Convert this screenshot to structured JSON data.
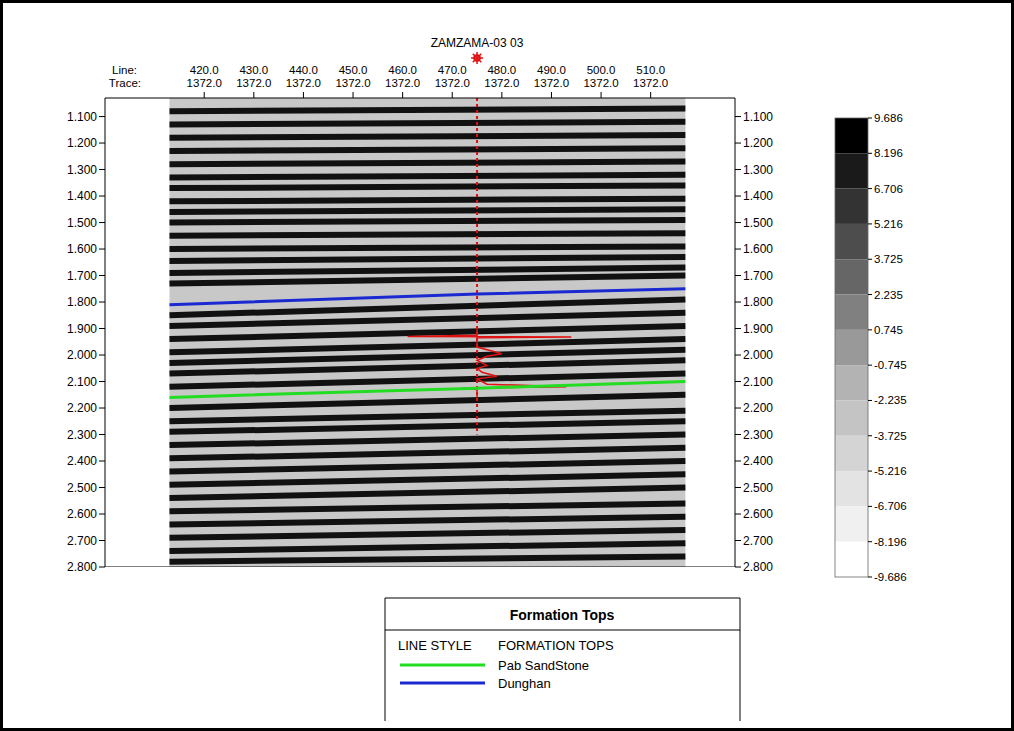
{
  "chart_data": {
    "type": "seismic_section",
    "title": "ZAMZAMA-03 03",
    "x_row_labels": [
      "Line:",
      "Trace:"
    ],
    "xlim": [
      400,
      527
    ],
    "xticks": [
      {
        "value": 420,
        "label": "420.0"
      },
      {
        "value": 430,
        "label": "430.0"
      },
      {
        "value": 440,
        "label": "440.0"
      },
      {
        "value": 450,
        "label": "450.0"
      },
      {
        "value": 460,
        "label": "460.0"
      },
      {
        "value": 470,
        "label": "470.0"
      },
      {
        "value": 480,
        "label": "480.0"
      },
      {
        "value": 490,
        "label": "490.0"
      },
      {
        "value": 500,
        "label": "500.0"
      },
      {
        "value": 510,
        "label": "510.0"
      }
    ],
    "trace_labels": [
      "1372.0",
      "1372.0",
      "1372.0",
      "1372.0",
      "1372.0",
      "1372.0",
      "1372.0",
      "1372.0",
      "1372.0",
      "1372.0"
    ],
    "ylim": [
      1.03,
      2.8
    ],
    "yticks": [
      {
        "value": 1.1,
        "label": "1.100"
      },
      {
        "value": 1.2,
        "label": "1.200"
      },
      {
        "value": 1.3,
        "label": "1.300"
      },
      {
        "value": 1.4,
        "label": "1.400"
      },
      {
        "value": 1.5,
        "label": "1.500"
      },
      {
        "value": 1.6,
        "label": "1.600"
      },
      {
        "value": 1.7,
        "label": "1.700"
      },
      {
        "value": 1.8,
        "label": "1.800"
      },
      {
        "value": 1.9,
        "label": "1.900"
      },
      {
        "value": 2.0,
        "label": "2.000"
      },
      {
        "value": 2.1,
        "label": "2.100"
      },
      {
        "value": 2.2,
        "label": "2.200"
      },
      {
        "value": 2.3,
        "label": "2.300"
      },
      {
        "value": 2.4,
        "label": "2.400"
      },
      {
        "value": 2.5,
        "label": "2.500"
      },
      {
        "value": 2.6,
        "label": "2.600"
      },
      {
        "value": 2.7,
        "label": "2.700"
      },
      {
        "value": 2.8,
        "label": "2.800"
      }
    ],
    "section": {
      "x": [
        413,
        517
      ],
      "reflectors": [
        [
          1.08,
          1.07
        ],
        [
          1.13,
          1.12
        ],
        [
          1.18,
          1.17
        ],
        [
          1.23,
          1.22
        ],
        [
          1.28,
          1.27
        ],
        [
          1.33,
          1.32
        ],
        [
          1.37,
          1.36
        ],
        [
          1.42,
          1.41
        ],
        [
          1.46,
          1.45
        ],
        [
          1.5,
          1.49
        ],
        [
          1.55,
          1.54
        ],
        [
          1.6,
          1.59
        ],
        [
          1.645,
          1.63
        ],
        [
          1.69,
          1.67
        ],
        [
          1.73,
          1.7
        ],
        [
          1.85,
          1.79
        ],
        [
          1.89,
          1.84
        ],
        [
          1.94,
          1.89
        ],
        [
          1.99,
          1.94
        ],
        [
          2.03,
          1.98
        ],
        [
          2.07,
          2.02
        ],
        [
          2.12,
          2.07
        ],
        [
          2.2,
          2.15
        ],
        [
          2.25,
          2.21
        ],
        [
          2.29,
          2.25
        ],
        [
          2.34,
          2.3
        ],
        [
          2.39,
          2.35
        ],
        [
          2.44,
          2.4
        ],
        [
          2.49,
          2.45
        ],
        [
          2.54,
          2.5
        ],
        [
          2.59,
          2.56
        ],
        [
          2.64,
          2.61
        ],
        [
          2.69,
          2.66
        ],
        [
          2.74,
          2.71
        ],
        [
          2.78,
          2.76
        ]
      ]
    },
    "well": {
      "line": 475,
      "t": [
        1.03,
        2.3
      ],
      "color": "#e01010"
    },
    "synthetic": {
      "t": [
        1.9,
        1.925,
        1.93,
        1.932,
        1.935,
        1.97,
        1.985,
        1.995,
        2.005,
        2.02,
        2.04,
        2.05,
        2.065,
        2.08,
        2.09,
        2.11,
        2.12,
        2.125,
        2.13,
        2.16
      ],
      "amplitude": [
        0,
        0,
        -14,
        19,
        0,
        0,
        3,
        5,
        2,
        0,
        2,
        0,
        1,
        4,
        0,
        2,
        18,
        -3,
        0,
        0
      ],
      "color": "#e01010"
    },
    "series": [
      {
        "name": "Pab SandStone",
        "color": "#22dd22",
        "x": [
          413,
          475,
          517
        ],
        "values": [
          2.16,
          2.125,
          2.1
        ]
      },
      {
        "name": "Dunghan",
        "color": "#1a2ad0",
        "x": [
          413,
          475,
          517
        ],
        "values": [
          1.81,
          1.77,
          1.75
        ]
      }
    ],
    "legend": "bottom",
    "legend_title": "Formation Tops",
    "legend_headers": [
      "LINE STYLE",
      "FORMATION TOPS"
    ],
    "colorbar": {
      "range": [
        -9.686,
        9.686
      ],
      "ticks": [
        9.686,
        8.196,
        6.706,
        5.216,
        3.725,
        2.235,
        0.745,
        -0.745,
        -2.235,
        -3.725,
        -5.216,
        -6.706,
        -8.196,
        -9.686
      ],
      "colors": [
        "#000000",
        "#1a1a1a",
        "#333333",
        "#4d4d4d",
        "#666666",
        "#808080",
        "#999999",
        "#b3b3b3",
        "#c4c4c4",
        "#d4d4d4",
        "#e3e3e3",
        "#f0f0f0",
        "#ffffff"
      ]
    }
  }
}
